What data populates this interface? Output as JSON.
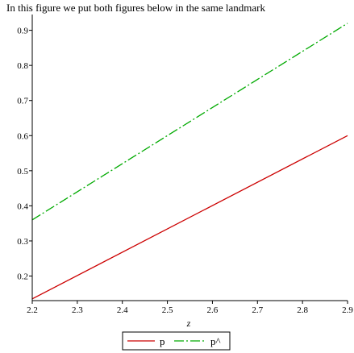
{
  "chart_data": {
    "type": "line",
    "title": "In this figure we put both figures below in the same landmark",
    "xlabel": "z",
    "ylabel": "",
    "xlim": [
      2.2,
      2.9
    ],
    "ylim": [
      0.13,
      0.945
    ],
    "x_ticks": [
      "2.2",
      "2.3",
      "2.4",
      "2.5",
      "2.6",
      "2.7",
      "2.8",
      "2.9"
    ],
    "y_ticks": [
      "0.2",
      "0.3",
      "0.4",
      "0.5",
      "0.6",
      "0.7",
      "0.8",
      "0.9"
    ],
    "grid": false,
    "legend_position": "bottom",
    "series": [
      {
        "name": "p",
        "color": "#cc0000",
        "dash": "solid",
        "x": [
          2.2,
          2.9
        ],
        "y": [
          0.135,
          0.6
        ]
      },
      {
        "name": "p^",
        "color": "#00aa00",
        "dash": "dash-dot",
        "x": [
          2.2,
          2.9
        ],
        "y": [
          0.36,
          0.92
        ]
      }
    ]
  }
}
